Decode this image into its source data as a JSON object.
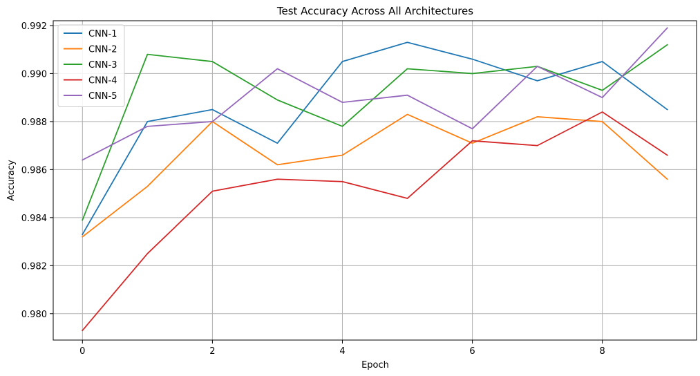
{
  "chart_data": {
    "type": "line",
    "title": "Test Accuracy Across All Architectures",
    "xlabel": "Epoch",
    "ylabel": "Accuracy",
    "x": [
      0,
      1,
      2,
      3,
      4,
      5,
      6,
      7,
      8,
      9
    ],
    "xlim": [
      -0.45,
      9.45
    ],
    "ylim": [
      0.9789,
      0.9922
    ],
    "xticks": [
      0,
      2,
      4,
      6,
      8
    ],
    "xtick_labels": [
      "0",
      "2",
      "4",
      "6",
      "8"
    ],
    "yticks": [
      0.98,
      0.982,
      0.984,
      0.986,
      0.988,
      0.99,
      0.992
    ],
    "ytick_labels": [
      "0.980",
      "0.982",
      "0.984",
      "0.986",
      "0.988",
      "0.990",
      "0.992"
    ],
    "grid": true,
    "legend_position": "top-left",
    "series": [
      {
        "name": "CNN-1",
        "color": "#1f77b4",
        "values": [
          0.9833,
          0.988,
          0.9885,
          0.9871,
          0.9905,
          0.9913,
          0.9906,
          0.9897,
          0.9905,
          0.9885
        ]
      },
      {
        "name": "CNN-2",
        "color": "#ff7f0e",
        "values": [
          0.9832,
          0.9853,
          0.988,
          0.9862,
          0.9866,
          0.9883,
          0.9871,
          0.9882,
          0.988,
          0.9856
        ]
      },
      {
        "name": "CNN-3",
        "color": "#2ca02c",
        "values": [
          0.9839,
          0.9908,
          0.9905,
          0.9889,
          0.9878,
          0.9902,
          0.99,
          0.9903,
          0.9893,
          0.9912
        ]
      },
      {
        "name": "CNN-4",
        "color": "#d62728",
        "values": [
          0.9793,
          0.9825,
          0.9851,
          0.9856,
          0.9855,
          0.9848,
          0.9872,
          0.987,
          0.9884,
          0.9866
        ]
      },
      {
        "name": "CNN-5",
        "color": "#9467bd",
        "values": [
          0.9864,
          0.9878,
          0.988,
          0.9902,
          0.9888,
          0.9891,
          0.9877,
          0.9903,
          0.989,
          0.9919
        ]
      }
    ]
  }
}
